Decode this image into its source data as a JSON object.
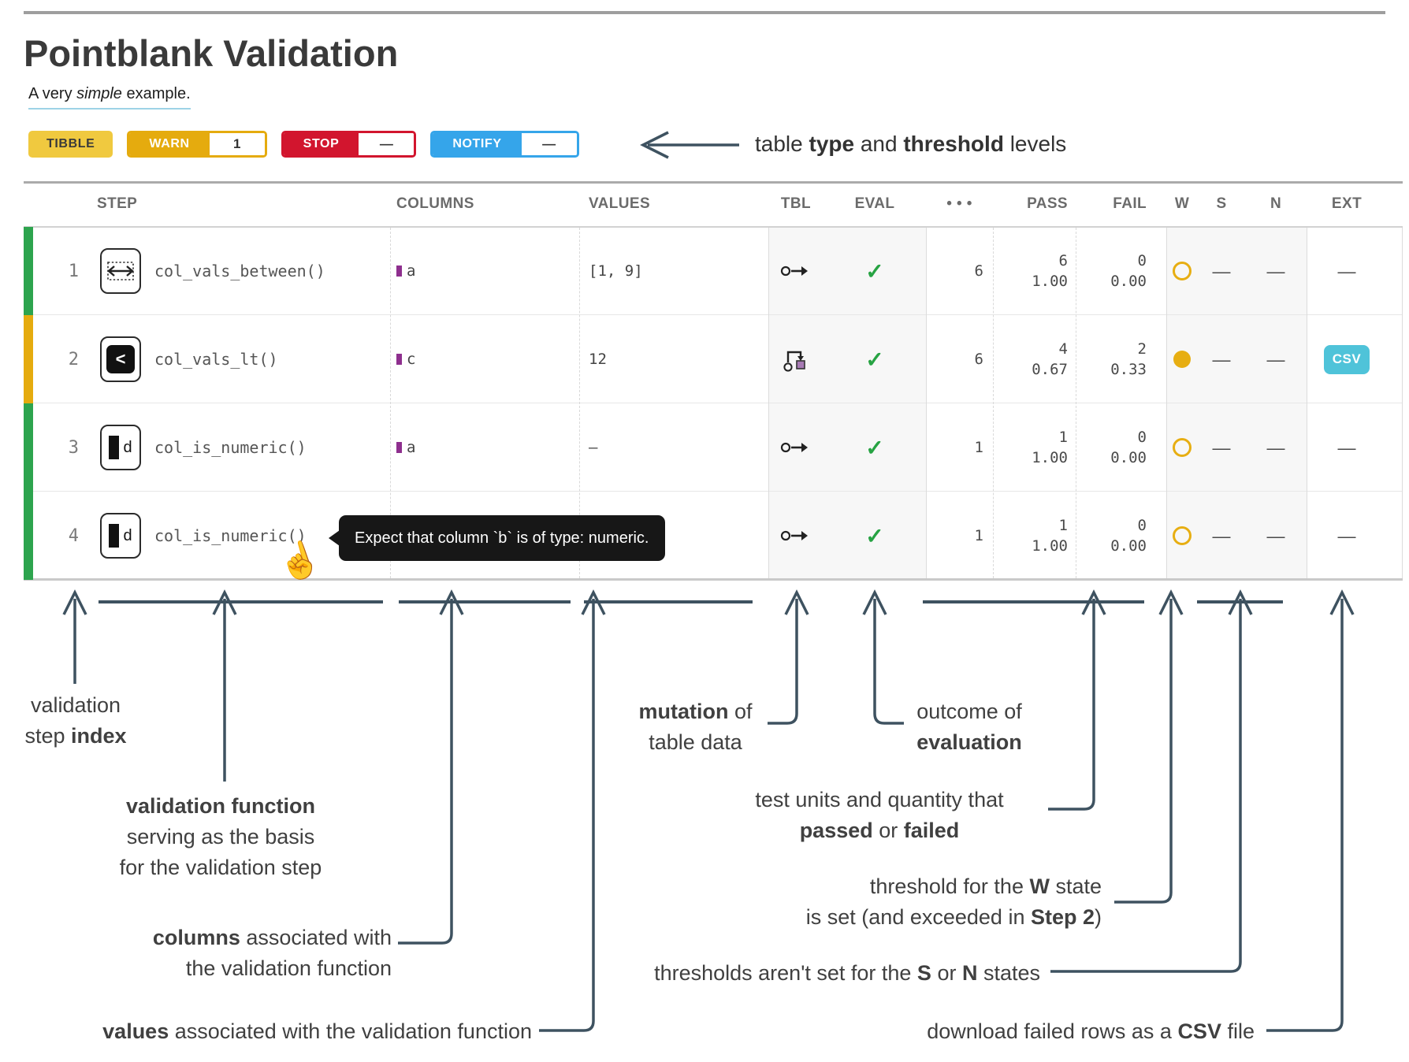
{
  "page": {
    "title": "Pointblank Validation",
    "subtitle_rich": [
      [
        {
          "t": "A very "
        },
        {
          "t": "simple",
          "i": 1
        },
        {
          "t": " example."
        }
      ]
    ]
  },
  "badges": {
    "tibble": {
      "label": "TIBBLE"
    },
    "warn": {
      "label": "WARN",
      "value": "1"
    },
    "stop": {
      "label": "STOP",
      "value": "—"
    },
    "notify": {
      "label": "NOTIFY",
      "value": "—"
    },
    "note_rich": [
      [
        {
          "t": "table "
        },
        {
          "t": "type",
          "b": 1
        },
        {
          "t": " and "
        },
        {
          "t": "threshold",
          "b": 1
        },
        {
          "t": " levels"
        }
      ]
    ]
  },
  "table": {
    "headers": [
      "STEP",
      "COLUMNS",
      "VALUES",
      "TBL",
      "EVAL",
      "• • •",
      "PASS",
      "FAIL",
      "W",
      "S",
      "N",
      "EXT"
    ],
    "rows": [
      {
        "index": "1",
        "status": "green",
        "icon": "between-icon",
        "fn": "col_vals_between()",
        "columns": "a",
        "values": "[1, 9]",
        "tbl": "unchanged",
        "eval": "✓",
        "units": "6",
        "pass_n": "6",
        "pass_f": "1.00",
        "fail_n": "0",
        "fail_f": "0.00",
        "w": "open",
        "s": "—",
        "n": "—",
        "ext": "—"
      },
      {
        "index": "2",
        "status": "amber",
        "icon": "less-than-icon",
        "fn": "col_vals_lt()",
        "columns": "c",
        "values": "12",
        "tbl": "mutated",
        "eval": "✓",
        "units": "6",
        "pass_n": "4",
        "pass_f": "0.67",
        "fail_n": "2",
        "fail_f": "0.33",
        "w": "filled",
        "s": "—",
        "n": "—",
        "ext": "CSV"
      },
      {
        "index": "3",
        "status": "green",
        "icon": "numeric-type-icon",
        "fn": "col_is_numeric()",
        "columns": "a",
        "values": "—",
        "tbl": "unchanged",
        "eval": "✓",
        "units": "1",
        "pass_n": "1",
        "pass_f": "1.00",
        "fail_n": "0",
        "fail_f": "0.00",
        "w": "open",
        "s": "—",
        "n": "—",
        "ext": "—"
      },
      {
        "index": "4",
        "status": "green",
        "icon": "numeric-type-icon",
        "fn": "col_is_numeric()",
        "columns": "",
        "values": "",
        "tbl": "unchanged",
        "eval": "✓",
        "units": "1",
        "pass_n": "1",
        "pass_f": "1.00",
        "fail_n": "0",
        "fail_f": "0.00",
        "w": "open",
        "s": "—",
        "n": "—",
        "ext": "—"
      }
    ]
  },
  "tooltip": {
    "text": "Expect that column `b` is of type: numeric."
  },
  "annotations": {
    "step_index": [
      [
        {
          "t": "validation"
        }
      ],
      [
        {
          "t": "step "
        },
        {
          "t": "index",
          "b": 1
        }
      ]
    ],
    "function": [
      [
        {
          "t": "validation function",
          "b": 1
        }
      ],
      [
        {
          "t": "serving as the basis"
        }
      ],
      [
        {
          "t": "for the validation step"
        }
      ]
    ],
    "columns": [
      [
        {
          "t": "columns",
          "b": 1
        },
        {
          "t": " associated with"
        }
      ],
      [
        {
          "t": "the validation function"
        }
      ]
    ],
    "values": [
      [
        {
          "t": "values",
          "b": 1
        },
        {
          "t": " associated with the validation function"
        }
      ]
    ],
    "mutation": [
      [
        {
          "t": "mutation",
          "b": 1
        },
        {
          "t": " of"
        }
      ],
      [
        {
          "t": "table data"
        }
      ]
    ],
    "outcome": [
      [
        {
          "t": "outcome of"
        }
      ],
      [
        {
          "t": "evaluation",
          "b": 1
        }
      ]
    ],
    "passfail": [
      [
        {
          "t": "test units and quantity that"
        }
      ],
      [
        {
          "t": "passed",
          "b": 1
        },
        {
          "t": " or "
        },
        {
          "t": "failed",
          "b": 1
        }
      ]
    ],
    "w_threshold": [
      [
        {
          "t": "threshold for the "
        },
        {
          "t": "W",
          "b": 1
        },
        {
          "t": " state"
        }
      ],
      [
        {
          "t": "is set (and exceeded in "
        },
        {
          "t": "Step 2",
          "b": 1
        },
        {
          "t": ")"
        }
      ]
    ],
    "sn_threshold": [
      [
        {
          "t": "thresholds aren't set for the "
        },
        {
          "t": "S",
          "b": 1
        },
        {
          "t": " or "
        },
        {
          "t": "N",
          "b": 1
        },
        {
          "t": " states"
        }
      ]
    ],
    "csv_download": [
      [
        {
          "t": "download failed rows as a "
        },
        {
          "t": "CSV",
          "b": 1
        },
        {
          "t": " file"
        }
      ]
    ]
  },
  "colors": {
    "pass_green": "#2DA44E",
    "warn_amber": "#E5AB0E",
    "stop_red": "#D2152E",
    "notify_blue": "#35A5EA",
    "tibble_yellow": "#F0C93F",
    "csv_teal": "#4FC3D9",
    "check_green": "#27A343",
    "column_purple": "#8E2F8E",
    "arrow_slate": "#3E5260"
  }
}
